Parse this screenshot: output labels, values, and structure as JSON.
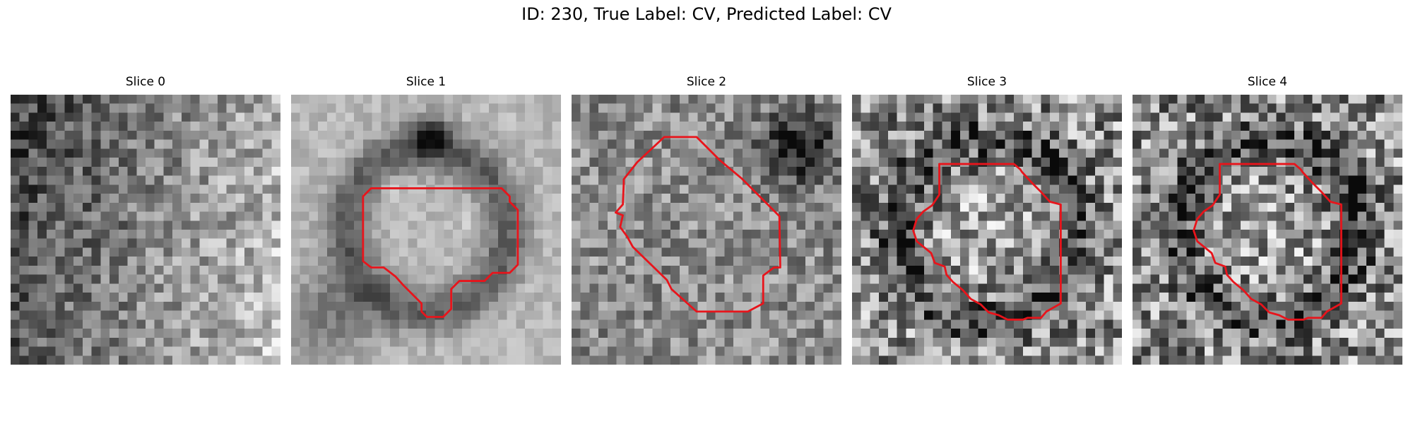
{
  "figure": {
    "title": "ID: 230, True Label: CV, Predicted Label: CV"
  },
  "panels": [
    {
      "title": "Slice 0",
      "has_contour": false,
      "seed": 11,
      "base": "dark-left-bright-right"
    },
    {
      "title": "Slice 1",
      "has_contour": true,
      "seed": 23,
      "base": "smooth-blobs"
    },
    {
      "title": "Slice 2",
      "has_contour": true,
      "seed": 37,
      "base": "medium-noise"
    },
    {
      "title": "Slice 3",
      "has_contour": true,
      "seed": 51,
      "base": "high-noise-ring"
    },
    {
      "title": "Slice 4",
      "has_contour": true,
      "seed": 67,
      "base": "high-noise-ring"
    }
  ],
  "colors": {
    "contour": "#e8141b",
    "background": "#ffffff"
  }
}
